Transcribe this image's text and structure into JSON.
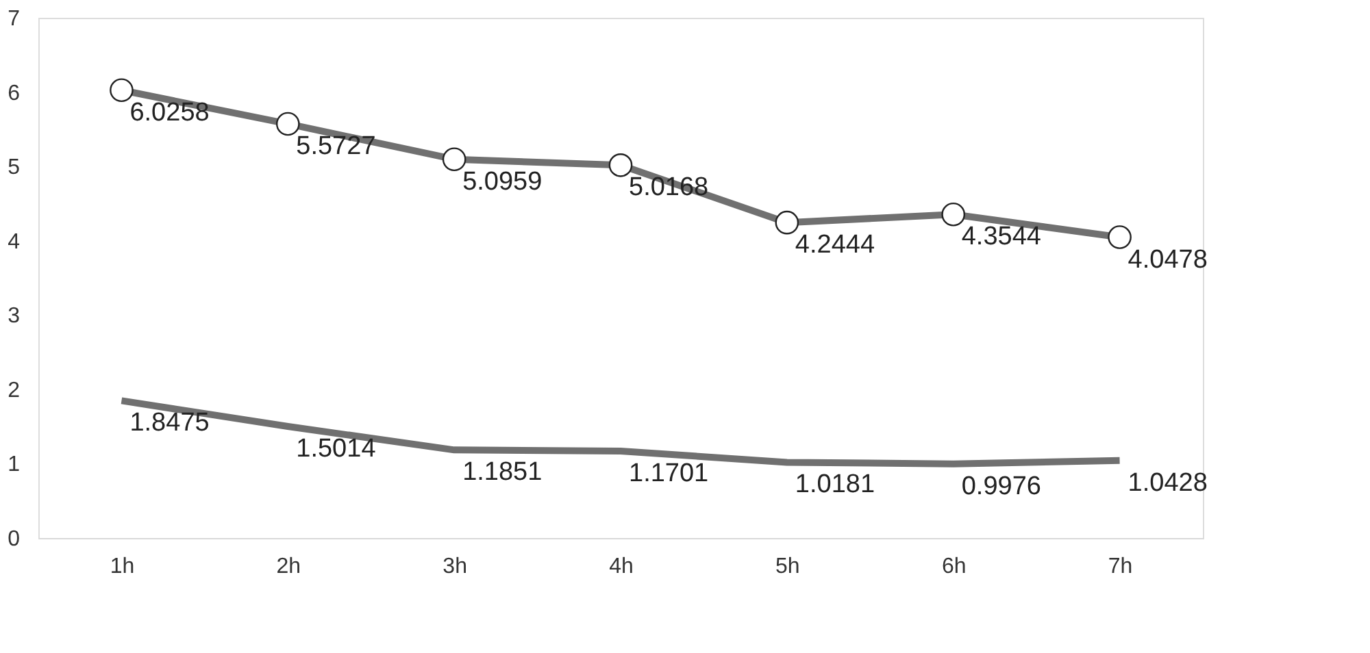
{
  "chart_data": {
    "type": "line",
    "categories": [
      "1h",
      "2h",
      "3h",
      "4h",
      "5h",
      "6h",
      "7h"
    ],
    "series": [
      {
        "color": "#707070",
        "marker": "circle",
        "values": [
          6.0258,
          5.5727,
          5.0959,
          5.0168,
          4.2444,
          4.3544,
          4.0478
        ]
      },
      {
        "color": "#707070",
        "marker": "none",
        "values": [
          1.8475,
          1.5014,
          1.1851,
          1.1701,
          1.0181,
          0.9976,
          1.0428
        ]
      }
    ],
    "ylim": [
      0,
      7
    ],
    "yticks": [
      0,
      1,
      2,
      3,
      4,
      5,
      6,
      7
    ],
    "grid": false,
    "data_labels": true,
    "line_style": "solid"
  }
}
